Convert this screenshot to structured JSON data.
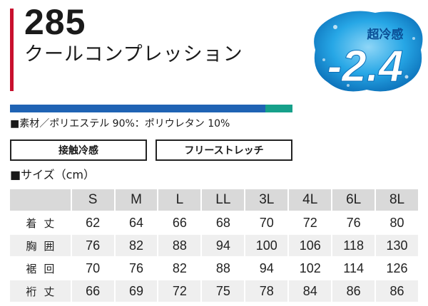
{
  "product": {
    "model_number": "285",
    "name": "クールコンプレッション"
  },
  "badge": {
    "label": "超冷感",
    "value": "-2.4",
    "colors": {
      "accent": "#1aa3e8",
      "dark": "#0b6fb8"
    }
  },
  "stripe": {
    "blue": "#1f63b4",
    "teal": "#16a08a"
  },
  "material_text": "■素材／ポリエステル 90%：ポリウレタン 10%",
  "features": [
    "接触冷感",
    "フリーストレッチ"
  ],
  "size_heading": "■サイズ（cm）",
  "size_table": {
    "headers": [
      "",
      "S",
      "M",
      "L",
      "LL",
      "3L",
      "4L",
      "6L",
      "8L"
    ],
    "rows": [
      {
        "label": "着丈",
        "values": [
          "62",
          "64",
          "66",
          "68",
          "70",
          "72",
          "76",
          "80"
        ]
      },
      {
        "label": "胸囲",
        "values": [
          "76",
          "82",
          "88",
          "94",
          "100",
          "106",
          "118",
          "130"
        ]
      },
      {
        "label": "裾回",
        "values": [
          "70",
          "76",
          "82",
          "88",
          "94",
          "102",
          "114",
          "126"
        ]
      },
      {
        "label": "裄丈",
        "values": [
          "66",
          "69",
          "72",
          "75",
          "78",
          "84",
          "86",
          "86"
        ]
      }
    ]
  }
}
